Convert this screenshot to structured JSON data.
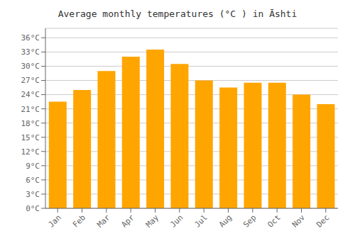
{
  "chart_data": {
    "type": "bar",
    "title": "Average monthly temperatures (°C ) in Āshti",
    "categories": [
      "Jan",
      "Feb",
      "Mar",
      "Apr",
      "May",
      "Jun",
      "Jul",
      "Aug",
      "Sep",
      "Oct",
      "Nov",
      "Dec"
    ],
    "values": [
      22.5,
      25.0,
      29.0,
      32.0,
      33.5,
      30.5,
      27.0,
      25.5,
      26.5,
      26.5,
      24.0,
      22.0
    ],
    "color": "#FFA500",
    "ylim": [
      0,
      38
    ],
    "yticks": [
      {
        "value": 0,
        "label": "0°C"
      },
      {
        "value": 3,
        "label": "3°C"
      },
      {
        "value": 6,
        "label": "6°C"
      },
      {
        "value": 9,
        "label": "9°C"
      },
      {
        "value": 12,
        "label": "12°C"
      },
      {
        "value": 15,
        "label": "15°C"
      },
      {
        "value": 18,
        "label": "18°C"
      },
      {
        "value": 21,
        "label": "21°C"
      },
      {
        "value": 24,
        "label": "24°C"
      },
      {
        "value": 27,
        "label": "27°C"
      },
      {
        "value": 30,
        "label": "30°C"
      },
      {
        "value": 33,
        "label": "33°C"
      },
      {
        "value": 36,
        "label": "36°C"
      }
    ],
    "grid": true
  }
}
